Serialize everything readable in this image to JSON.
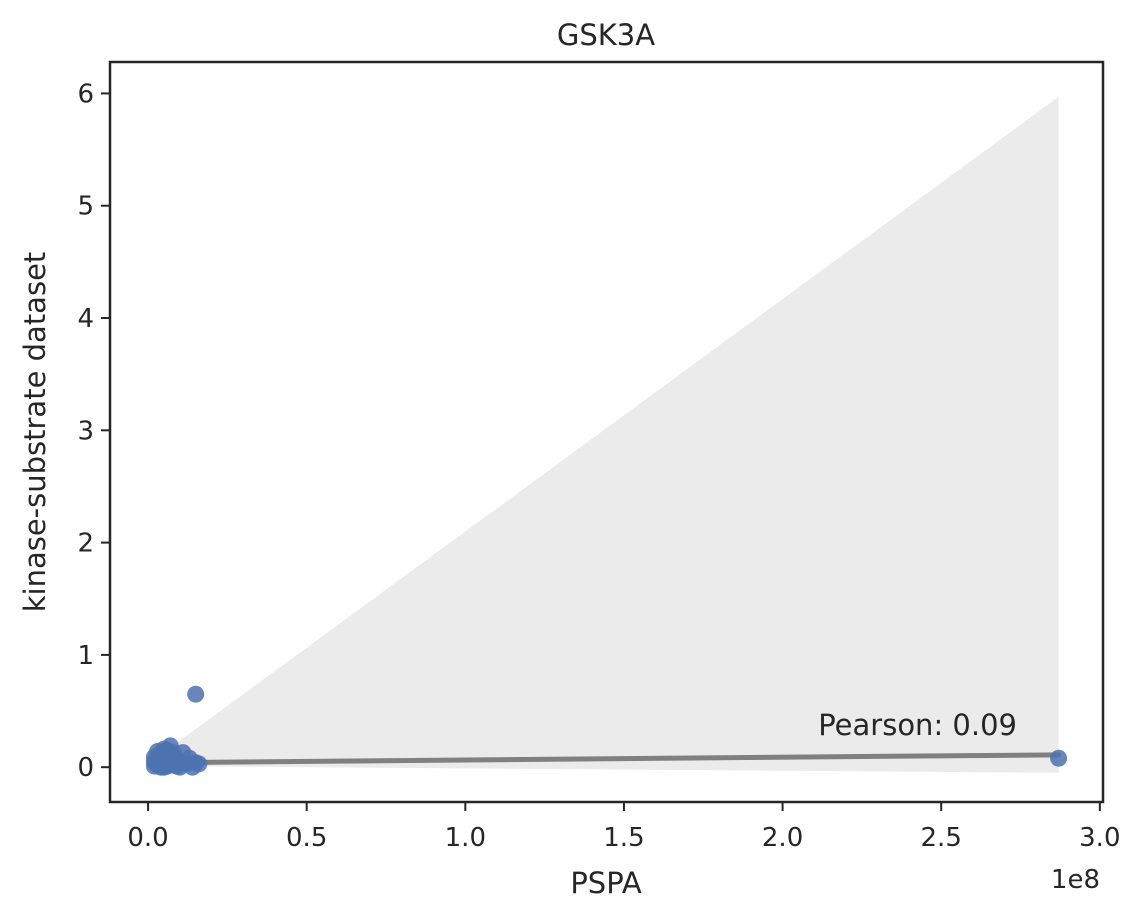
{
  "chart_data": {
    "type": "scatter",
    "title": "GSK3A",
    "xlabel": "PSPA",
    "ylabel": "kinase-substrate dataset",
    "x_offset_label": "1e8",
    "annotation": "Pearson: 0.09",
    "xlim": [
      -0.12,
      3.01
    ],
    "ylim": [
      -0.31,
      6.28
    ],
    "x_ticks": [
      0.0,
      0.5,
      1.0,
      1.5,
      2.0,
      2.5,
      3.0
    ],
    "x_tick_labels": [
      "0.0",
      "0.5",
      "1.0",
      "1.5",
      "2.0",
      "2.5",
      "3.0"
    ],
    "y_ticks": [
      0,
      1,
      2,
      3,
      4,
      5,
      6
    ],
    "y_tick_labels": [
      "0",
      "1",
      "2",
      "3",
      "4",
      "5",
      "6"
    ],
    "grid": false,
    "colors": {
      "points": "#4c72b0",
      "regression_line": "#808080",
      "confidence_band": "#ebebeb",
      "axes": "#262626"
    },
    "points": [
      {
        "x": 0.02,
        "y": 0.01
      },
      {
        "x": 0.03,
        "y": 0.02
      },
      {
        "x": 0.02,
        "y": 0.05
      },
      {
        "x": 0.03,
        "y": 0.08
      },
      {
        "x": 0.04,
        "y": 0.03
      },
      {
        "x": 0.05,
        "y": 0.0
      },
      {
        "x": 0.04,
        "y": 0.12
      },
      {
        "x": 0.05,
        "y": 0.16
      },
      {
        "x": 0.06,
        "y": 0.09
      },
      {
        "x": 0.07,
        "y": 0.19
      },
      {
        "x": 0.07,
        "y": 0.04
      },
      {
        "x": 0.08,
        "y": 0.13
      },
      {
        "x": 0.08,
        "y": 0.02
      },
      {
        "x": 0.09,
        "y": 0.07
      },
      {
        "x": 0.05,
        "y": 0.06
      },
      {
        "x": 0.06,
        "y": 0.01
      },
      {
        "x": 0.03,
        "y": 0.14
      },
      {
        "x": 0.04,
        "y": 0.0
      },
      {
        "x": 0.06,
        "y": 0.15
      },
      {
        "x": 0.07,
        "y": 0.1
      },
      {
        "x": 0.1,
        "y": 0.04
      },
      {
        "x": 0.11,
        "y": 0.13
      },
      {
        "x": 0.12,
        "y": 0.03
      },
      {
        "x": 0.13,
        "y": 0.08
      },
      {
        "x": 0.14,
        "y": 0.0
      },
      {
        "x": 0.15,
        "y": 0.04
      },
      {
        "x": 0.16,
        "y": 0.03
      },
      {
        "x": 0.09,
        "y": 0.01
      },
      {
        "x": 0.1,
        "y": 0.0
      },
      {
        "x": 0.02,
        "y": 0.09
      },
      {
        "x": 0.15,
        "y": 0.65
      },
      {
        "x": 2.87,
        "y": 0.08
      }
    ],
    "regression": {
      "x": [
        0.02,
        2.87
      ],
      "y": [
        0.04,
        0.11
      ]
    },
    "confidence_band": {
      "x": [
        0.02,
        2.87
      ],
      "lower": [
        0.01,
        -0.05
      ],
      "upper": [
        0.07,
        5.97
      ]
    }
  }
}
